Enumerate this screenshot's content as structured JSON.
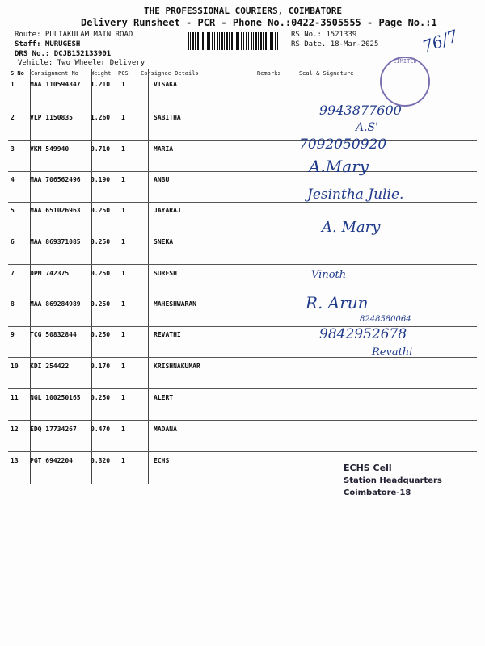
{
  "header": {
    "company": "THE PROFESSIONAL COURIERS, COIMBATORE",
    "subtitle": "Delivery Runsheet - PCR - Phone No.:0422-3505555 - Page No.:1",
    "route": "Route: PULIAKULAM MAIN ROAD",
    "staff": "Staff: MURUGESH",
    "drs": "DRS No.: DCJB152133901",
    "vehicle": "Vehicle: Two Wheeler Delivery",
    "rs_no": "RS No.: 1521339",
    "rs_date": "RS Date. 18-Mar-2025",
    "page_mark": "76/7"
  },
  "columns": [
    "S No",
    "Consignment No",
    "Weight",
    "PCS",
    "Consignee Details",
    "Remarks",
    "Seal & Signature"
  ],
  "rows": [
    {
      "sno": "1",
      "cn": "MAA 110594347",
      "wt": "1.210",
      "pcs": "1",
      "name": "VISAKA"
    },
    {
      "sno": "2",
      "cn": "VLP 1150835",
      "wt": "1.260",
      "pcs": "1",
      "name": "SABITHA"
    },
    {
      "sno": "3",
      "cn": "VKM 549940",
      "wt": "0.710",
      "pcs": "1",
      "name": "MARIA"
    },
    {
      "sno": "4",
      "cn": "MAA 706562496",
      "wt": "0.190",
      "pcs": "1",
      "name": "ANBU"
    },
    {
      "sno": "5",
      "cn": "MAA 651026963",
      "wt": "0.250",
      "pcs": "1",
      "name": "JAYARAJ"
    },
    {
      "sno": "6",
      "cn": "MAA 869371085",
      "wt": "0.250",
      "pcs": "1",
      "name": "SNEKA"
    },
    {
      "sno": "7",
      "cn": "DPM 742375",
      "wt": "0.250",
      "pcs": "1",
      "name": "SURESH"
    },
    {
      "sno": "8",
      "cn": "MAA 869284989",
      "wt": "0.250",
      "pcs": "1",
      "name": "MAHESHWARAN"
    },
    {
      "sno": "9",
      "cn": "TCG 50832844",
      "wt": "0.250",
      "pcs": "1",
      "name": "REVATHI"
    },
    {
      "sno": "10",
      "cn": "KDI 254422",
      "wt": "0.170",
      "pcs": "1",
      "name": "KRISHNAKUMAR"
    },
    {
      "sno": "11",
      "cn": "NGL 100250165",
      "wt": "0.250",
      "pcs": "1",
      "name": "ALERT"
    },
    {
      "sno": "12",
      "cn": "EDQ 17734267",
      "wt": "0.470",
      "pcs": "1",
      "name": "MADANA"
    },
    {
      "sno": "13",
      "cn": "PGT 6942204",
      "wt": "0.320",
      "pcs": "1",
      "name": "ECHS"
    }
  ],
  "handwriting": {
    "h2": "9943877600",
    "h3": "A.S'",
    "h4": "7092050920",
    "h5": "A.Mary",
    "h6": "Jesintha Julie.",
    "h7": "A. Mary",
    "h8": "Vinoth",
    "h9": "R. Arun",
    "h9b": "8248580064",
    "h10": "9842952678",
    "h11": "Revathi"
  },
  "stamp_echs": {
    "line1": "ECHS Cell",
    "line2": "Station Headquarters",
    "line3": "Coimbatore-18"
  },
  "stamp_round": "LIMITED"
}
